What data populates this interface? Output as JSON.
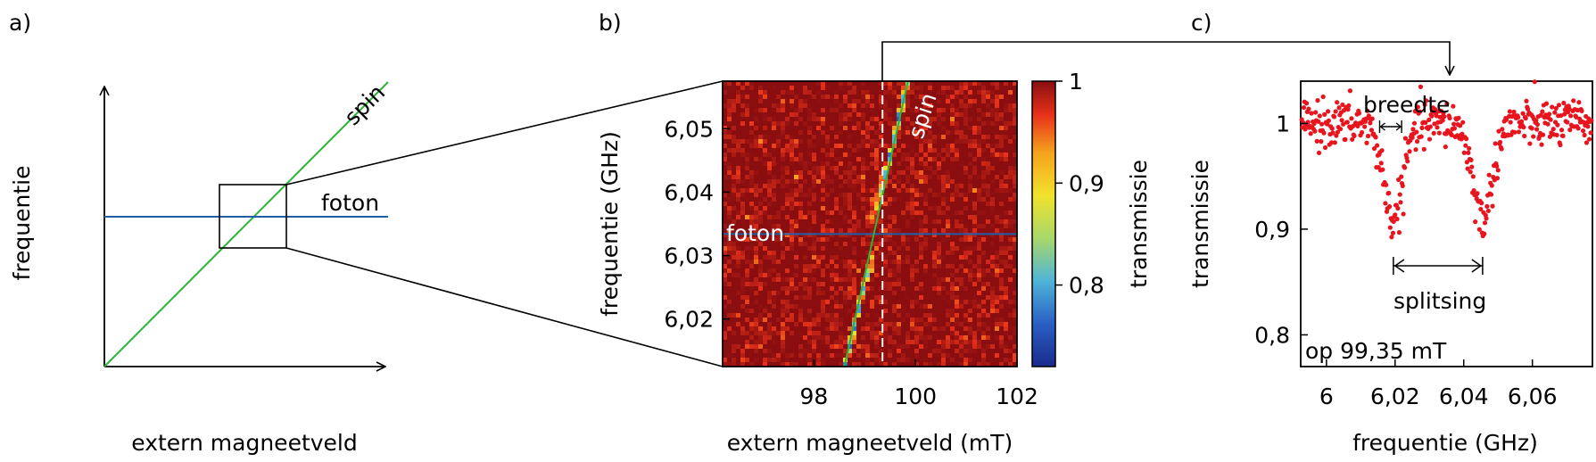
{
  "panels": {
    "a": {
      "label": "a)",
      "xlabel": "extern magneetveld",
      "ylabel": "frequentie",
      "spin_label": "spin",
      "foton_label": "foton"
    },
    "b": {
      "label": "b)",
      "xlabel": "extern magneetveld (mT)",
      "ylabel": "frequentie (GHz)",
      "spin_label": "spin",
      "foton_label": "foton",
      "colorbar_label": "transmissie",
      "colorbar_ticks": [
        "1",
        "0,9",
        "0,8"
      ]
    },
    "c": {
      "label": "c)",
      "xlabel": "frequentie (GHz)",
      "ylabel": "transmissie",
      "annotation_breedte": "breedte",
      "annotation_splitsing": "splitsing",
      "annotation_field": "op 99,35 mT"
    }
  },
  "chart_data": [
    {
      "type": "line",
      "panel": "a",
      "series": [
        {
          "name": "spin",
          "x": [
            0,
            1
          ],
          "y": [
            0,
            1
          ],
          "color": "#2bb33a"
        },
        {
          "name": "foton",
          "x": [
            0,
            1
          ],
          "y": [
            0.52,
            0.52
          ],
          "color": "#1f5fa8"
        }
      ]
    },
    {
      "type": "heatmap",
      "panel": "b",
      "xlim": [
        96.2,
        102
      ],
      "ylim": [
        6.0125,
        6.0575
      ],
      "x_ticks": [
        98,
        100,
        102
      ],
      "x_tick_labels": [
        "98",
        "100",
        "102"
      ],
      "y_ticks": [
        6.02,
        6.03,
        6.04,
        6.05
      ],
      "y_tick_labels": [
        "6,02",
        "6,03",
        "6,04",
        "6,05"
      ],
      "colorbar_range": [
        0.72,
        1.0
      ],
      "photon_frequency": 6.0334,
      "spin_line": {
        "x": [
          98.6,
          99.85
        ],
        "y": [
          6.0125,
          6.0575
        ]
      },
      "dashed_field": 99.35,
      "coupling_g": 0.0033,
      "linewidth": 0.0012,
      "min_transmission": 0.74
    },
    {
      "type": "scatter",
      "panel": "c",
      "xlim": [
        5.9925,
        6.0775
      ],
      "ylim": [
        0.77,
        1.04
      ],
      "x_ticks": [
        6.0,
        6.02,
        6.04,
        6.06
      ],
      "x_tick_labels": [
        "6",
        "6,02",
        "6,04",
        "6,06"
      ],
      "y_ticks": [
        0.8,
        0.9,
        1.0
      ],
      "y_tick_labels": [
        "0,8",
        "0,9",
        "1"
      ],
      "dip_centers": [
        6.0195,
        6.0455
      ],
      "dip_depth": 0.09,
      "dip_width": 0.004,
      "color": "#e8141e"
    }
  ]
}
